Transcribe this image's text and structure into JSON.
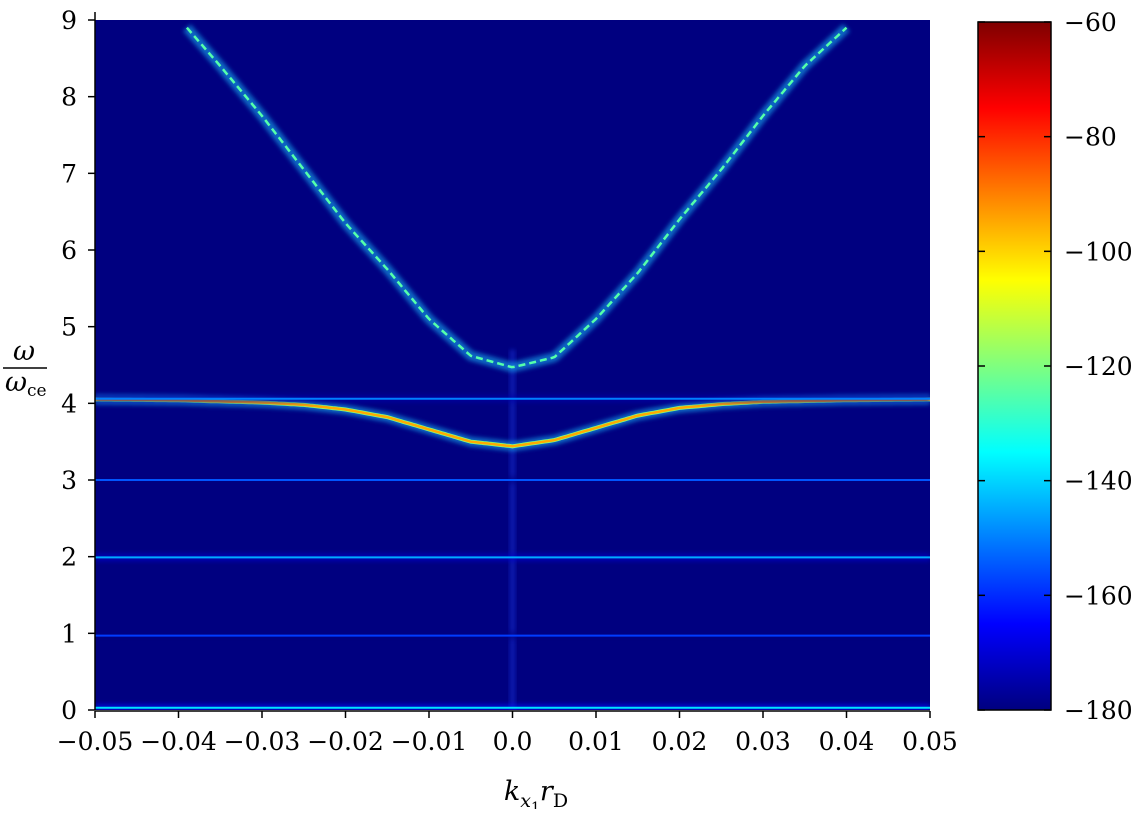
{
  "chart_data": {
    "type": "heatmap",
    "title": "",
    "xlabel": "k_{x_1} r_D",
    "ylabel": "ω / ω_ce",
    "xlim": [
      -0.05,
      0.05
    ],
    "ylim": [
      0,
      9
    ],
    "x_ticks": [
      -0.05,
      -0.04,
      -0.03,
      -0.02,
      -0.01,
      0.0,
      0.01,
      0.02,
      0.03,
      0.04,
      0.05
    ],
    "x_tick_labels": [
      "−0.05",
      "−0.04",
      "−0.03",
      "−0.02",
      "−0.01",
      "0.0",
      "0.01",
      "0.02",
      "0.03",
      "0.04",
      "0.05"
    ],
    "y_ticks": [
      0,
      1,
      2,
      3,
      4,
      5,
      6,
      7,
      8,
      9
    ],
    "y_tick_labels": [
      "0",
      "1",
      "2",
      "3",
      "4",
      "5",
      "6",
      "7",
      "8",
      "9"
    ],
    "colorbar": {
      "range": [
        -180,
        -60
      ],
      "ticks": [
        -180,
        -160,
        -140,
        -120,
        -100,
        -80,
        -60
      ],
      "tick_labels": [
        "−180",
        "−160",
        "−140",
        "−120",
        "−100",
        "−80",
        "−60"
      ],
      "colormap": "jet"
    },
    "background_level": -180,
    "series": [
      {
        "shape": "branch",
        "x": [
          -0.039,
          -0.035,
          -0.03,
          -0.025,
          -0.02,
          -0.015,
          -0.01,
          -0.005,
          0.0,
          0.005,
          0.01,
          0.015,
          0.02,
          0.025,
          0.03,
          0.035,
          0.04
        ],
        "y": [
          8.9,
          8.4,
          7.75,
          7.05,
          6.35,
          5.75,
          5.1,
          4.62,
          4.47,
          4.6,
          5.1,
          5.7,
          6.4,
          7.05,
          7.75,
          8.4,
          8.9
        ],
        "level": -125
      },
      {
        "shape": "branch",
        "x": [
          -0.05,
          -0.04,
          -0.03,
          -0.025,
          -0.02,
          -0.015,
          -0.01,
          -0.005,
          0.0,
          0.005,
          0.01,
          0.015,
          0.02,
          0.025,
          0.03,
          0.04,
          0.05
        ],
        "y": [
          4.05,
          4.04,
          4.01,
          3.98,
          3.92,
          3.82,
          3.66,
          3.5,
          3.44,
          3.52,
          3.68,
          3.84,
          3.94,
          3.99,
          4.02,
          4.04,
          4.05
        ],
        "level": -95
      },
      {
        "shape": "line",
        "y": 0.03,
        "level": -138
      },
      {
        "shape": "line",
        "y": 0.97,
        "level": -158
      },
      {
        "shape": "line",
        "y": 1.99,
        "level": -145
      },
      {
        "shape": "line",
        "y": 3.0,
        "level": -155
      },
      {
        "shape": "line",
        "y": 4.06,
        "level": -150
      }
    ]
  }
}
